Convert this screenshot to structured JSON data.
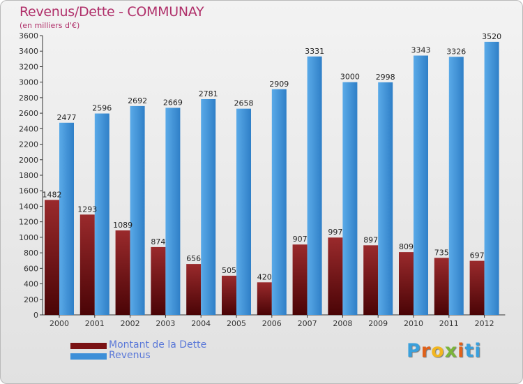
{
  "header": {
    "title": "Revenus/Dette - COMMUNAY",
    "subtitle": "(en milliers d'€)"
  },
  "legend": {
    "items": [
      {
        "label": "Montant de la Dette",
        "color": "#7a1214"
      },
      {
        "label": "Revenus",
        "color": "#3d8fd8"
      }
    ]
  },
  "brand": {
    "letters": [
      "P",
      "r",
      "o",
      "x",
      "i",
      "ti"
    ]
  },
  "colors": {
    "debt_top": "#9a2a2c",
    "debt_bottom": "#4a0406",
    "revenue_left": "#5aaae8",
    "revenue_right": "#2f7fc7",
    "title": "#b0306a",
    "axis": "#333333"
  },
  "chart_data": {
    "type": "bar",
    "title": "Revenus/Dette - COMMUNAY",
    "subtitle": "(en milliers d'€)",
    "categories": [
      "2000",
      "2001",
      "2002",
      "2003",
      "2004",
      "2005",
      "2006",
      "2007",
      "2008",
      "2009",
      "2010",
      "2011",
      "2012"
    ],
    "series": [
      {
        "name": "Montant de la Dette",
        "values": [
          1482,
          1293,
          1089,
          874,
          656,
          505,
          420,
          907,
          997,
          897,
          809,
          735,
          697
        ]
      },
      {
        "name": "Revenus",
        "values": [
          2477,
          2596,
          2692,
          2669,
          2781,
          2658,
          2909,
          3331,
          3000,
          2998,
          3343,
          3326,
          3520
        ]
      }
    ],
    "ylim": [
      0,
      3600
    ],
    "yticks": [
      0,
      200,
      400,
      600,
      800,
      1000,
      1200,
      1400,
      1600,
      1800,
      2000,
      2200,
      2400,
      2600,
      2800,
      3000,
      3200,
      3400,
      3600
    ],
    "grid": false,
    "legend_position": "bottom-left",
    "xlabel": "",
    "ylabel": ""
  }
}
